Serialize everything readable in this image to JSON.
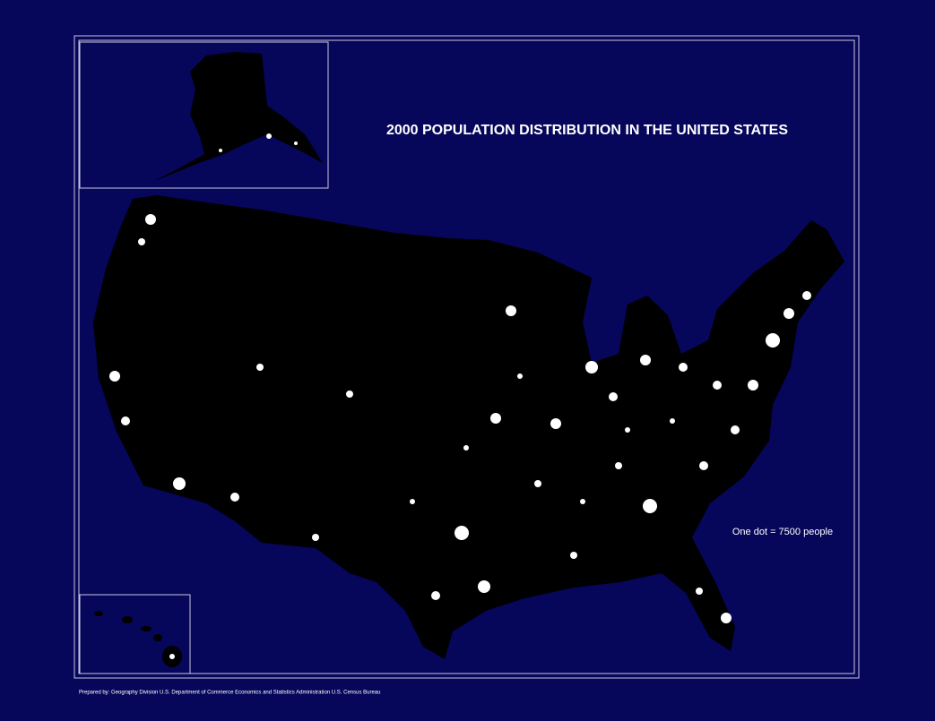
{
  "header": {
    "title": "2000 POPULATION DISTRIBUTION IN THE UNITED STATES"
  },
  "legend": {
    "text": "One dot = 7500 people"
  },
  "footer": {
    "credit": "Prepared by: Geography Division U.S. Department of Commerce Economics and Statistics Administration U.S. Census Bureau"
  }
}
